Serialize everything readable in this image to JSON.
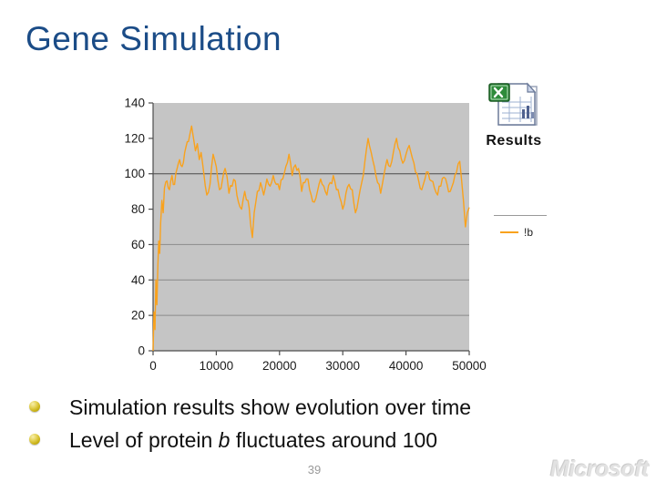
{
  "slide": {
    "title": "Gene Simulation",
    "page_number": "39",
    "watermark": "Microsoft"
  },
  "colors": {
    "title_blue": "#1b4c87",
    "plot_background": "#c5c5c5",
    "gridline": "#8a8a8a",
    "gridline_dark": "#4d4d4d",
    "series_orange": "#f9a21d",
    "bullet_gold": "#c4ad0e",
    "page_number_gray": "#9a9a9a",
    "watermark_gray": "#e2e2e2"
  },
  "attachment": {
    "icon": "excel-document-icon",
    "label": "Results"
  },
  "bullets": [
    {
      "prefix": "Simulation results show evolution over time",
      "emphasis": "",
      "suffix": ""
    },
    {
      "prefix": "Level of protein ",
      "emphasis": "b",
      "suffix": " fluctuates around 100"
    }
  ],
  "chart_data": {
    "type": "line",
    "title": "",
    "xlabel": "",
    "ylabel": "",
    "xlim": [
      0,
      50000
    ],
    "ylim": [
      0,
      140
    ],
    "x_ticks": [
      "0",
      "10000",
      "20000",
      "30000",
      "40000",
      "50000"
    ],
    "y_ticks": [
      "0",
      "20",
      "40",
      "60",
      "80",
      "100",
      "120",
      "140"
    ],
    "gridlines_at": [
      20,
      40,
      60,
      100
    ],
    "grid": true,
    "plot_bg": "#c5c5c5",
    "legend": {
      "position": "right",
      "entries": [
        {
          "label": "!b",
          "color": "#f9a21d"
        }
      ]
    },
    "series": [
      {
        "name": "!b",
        "color": "#f9a21d",
        "points": [
          [
            0,
            0
          ],
          [
            150,
            22
          ],
          [
            300,
            12
          ],
          [
            450,
            40
          ],
          [
            600,
            26
          ],
          [
            750,
            47
          ],
          [
            900,
            62
          ],
          [
            1050,
            55
          ],
          [
            1200,
            72
          ],
          [
            1400,
            85
          ],
          [
            1600,
            78
          ],
          [
            1800,
            92
          ],
          [
            2200,
            96
          ],
          [
            2600,
            91
          ],
          [
            3000,
            99
          ],
          [
            3400,
            94
          ],
          [
            3800,
            103
          ],
          [
            4200,
            108
          ],
          [
            4600,
            104
          ],
          [
            5000,
            112
          ],
          [
            5400,
            118
          ],
          [
            5800,
            122
          ],
          [
            6100,
            127
          ],
          [
            6400,
            120
          ],
          [
            6700,
            113
          ],
          [
            7000,
            117
          ],
          [
            7300,
            108
          ],
          [
            7600,
            112
          ],
          [
            8000,
            101
          ],
          [
            8500,
            88
          ],
          [
            9000,
            94
          ],
          [
            9500,
            111
          ],
          [
            10000,
            104
          ],
          [
            10500,
            91
          ],
          [
            11000,
            97
          ],
          [
            11400,
            103
          ],
          [
            12000,
            89
          ],
          [
            12500,
            93
          ],
          [
            13000,
            96
          ],
          [
            13500,
            84
          ],
          [
            14000,
            80
          ],
          [
            14500,
            90
          ],
          [
            15000,
            85
          ],
          [
            15400,
            72
          ],
          [
            15700,
            64
          ],
          [
            16000,
            78
          ],
          [
            16500,
            90
          ],
          [
            17000,
            95
          ],
          [
            17500,
            88
          ],
          [
            18000,
            97
          ],
          [
            18500,
            93
          ],
          [
            19000,
            99
          ],
          [
            19500,
            94
          ],
          [
            20000,
            91
          ],
          [
            20500,
            97
          ],
          [
            21000,
            104
          ],
          [
            21500,
            111
          ],
          [
            22000,
            99
          ],
          [
            22500,
            105
          ],
          [
            23000,
            103
          ],
          [
            23500,
            90
          ],
          [
            24000,
            95
          ],
          [
            24500,
            97
          ],
          [
            25000,
            88
          ],
          [
            25500,
            84
          ],
          [
            26000,
            90
          ],
          [
            26500,
            97
          ],
          [
            27000,
            93
          ],
          [
            27500,
            88
          ],
          [
            28000,
            95
          ],
          [
            28500,
            99
          ],
          [
            29000,
            91
          ],
          [
            29500,
            87
          ],
          [
            30000,
            80
          ],
          [
            30500,
            89
          ],
          [
            31000,
            94
          ],
          [
            31500,
            91
          ],
          [
            32000,
            78
          ],
          [
            32500,
            86
          ],
          [
            33000,
            95
          ],
          [
            33500,
            107
          ],
          [
            34000,
            120
          ],
          [
            34500,
            112
          ],
          [
            35000,
            104
          ],
          [
            35500,
            95
          ],
          [
            36000,
            89
          ],
          [
            36500,
            99
          ],
          [
            37000,
            108
          ],
          [
            37500,
            104
          ],
          [
            38000,
            112
          ],
          [
            38500,
            120
          ],
          [
            39000,
            113
          ],
          [
            39500,
            106
          ],
          [
            40000,
            111
          ],
          [
            40500,
            116
          ],
          [
            41000,
            109
          ],
          [
            41500,
            101
          ],
          [
            42000,
            96
          ],
          [
            42500,
            91
          ],
          [
            43000,
            97
          ],
          [
            43500,
            101
          ],
          [
            44000,
            96
          ],
          [
            44500,
            92
          ],
          [
            45000,
            88
          ],
          [
            45500,
            93
          ],
          [
            46000,
            98
          ],
          [
            46500,
            94
          ],
          [
            47000,
            90
          ],
          [
            47500,
            95
          ],
          [
            48000,
            101
          ],
          [
            48500,
            107
          ],
          [
            48800,
            96
          ],
          [
            49100,
            84
          ],
          [
            49400,
            70
          ],
          [
            49700,
            78
          ],
          [
            50000,
            81
          ]
        ]
      }
    ]
  }
}
